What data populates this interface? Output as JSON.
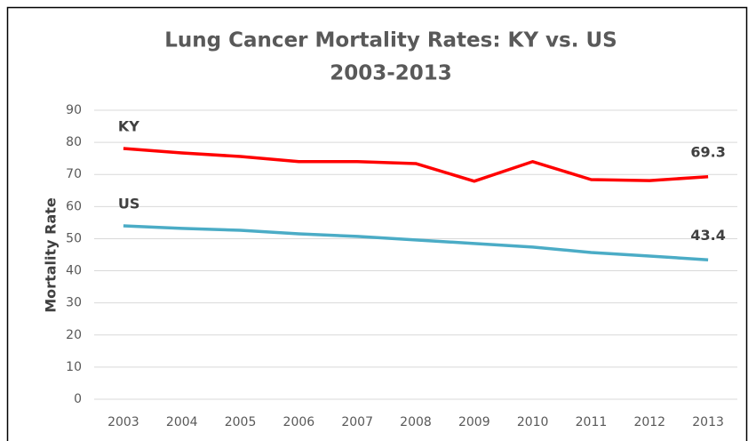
{
  "chart_data": {
    "type": "line",
    "title": "Lung Cancer Mortality Rates: KY vs. US",
    "subtitle": "2003-2013",
    "y_label": "Mortality Rate",
    "categories": [
      "2003",
      "2004",
      "2005",
      "2006",
      "2007",
      "2008",
      "2009",
      "2010",
      "2011",
      "2012",
      "2013"
    ],
    "series": [
      {
        "name": "KY",
        "color": "#ff0000",
        "values": [
          78.1,
          76.7,
          75.6,
          74.0,
          74.0,
          73.4,
          67.9,
          74.0,
          68.4,
          68.1,
          69.3
        ]
      },
      {
        "name": "US",
        "color": "#4bacc6",
        "values": [
          54.0,
          53.2,
          52.6,
          51.5,
          50.7,
          49.6,
          48.5,
          47.4,
          45.7,
          44.6,
          43.4
        ]
      }
    ],
    "ylim": [
      0,
      90
    ],
    "yticks": [
      0,
      10,
      20,
      30,
      40,
      50,
      60,
      70,
      80,
      90
    ],
    "grid": true
  }
}
